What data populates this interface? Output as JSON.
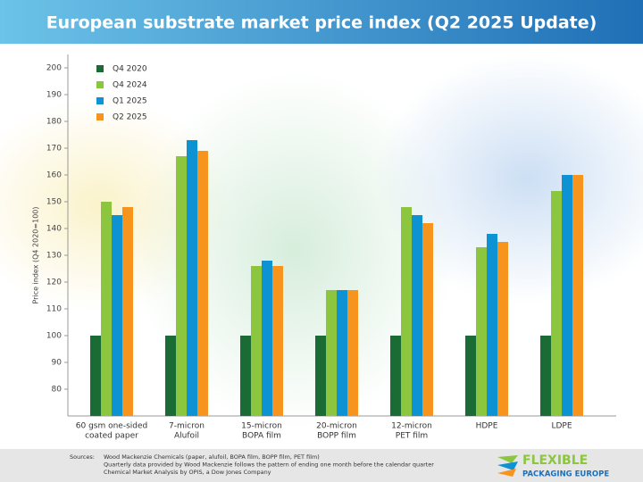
{
  "chart_data": {
    "type": "bar",
    "title": "European substrate market price index (Q2 2025 Update)",
    "y_label": "Price index (Q4 2020=100)",
    "categories": [
      [
        "60 gsm one-sided",
        "coated paper"
      ],
      [
        "7-micron",
        "Alufoil"
      ],
      [
        "15-micron",
        "BOPA film"
      ],
      [
        "20-micron",
        "BOPP film"
      ],
      [
        "12-micron",
        "PET film"
      ],
      [
        "HDPE"
      ],
      [
        "LDPE"
      ]
    ],
    "series": [
      {
        "name": "Q4 2020",
        "color": "#1b6b34",
        "values": [
          100,
          100,
          100,
          100,
          100,
          100,
          100
        ]
      },
      {
        "name": "Q4 2024",
        "color": "#8cc63e",
        "values": [
          150,
          167,
          126,
          117,
          148,
          133,
          154
        ]
      },
      {
        "name": "Q1 2025",
        "color": "#0d93d3",
        "values": [
          145,
          173,
          128,
          117,
          145,
          138,
          160
        ]
      },
      {
        "name": "Q2 2025",
        "color": "#f6941d",
        "values": [
          148,
          169,
          126,
          117,
          142,
          135,
          160
        ]
      }
    ],
    "ylim": [
      70,
      205
    ],
    "yticks": [
      80,
      90,
      100,
      110,
      120,
      130,
      140,
      150,
      160,
      170,
      180,
      190,
      200
    ],
    "legend": "upper left",
    "footer": {
      "label": "Sources:",
      "lines": [
        "Wood Mackenzie Chemicals (paper, alufoil, BOPA film, BOPP film, PET film)",
        "Quarterly data provided by Wood Mackenzie follows the pattern of ending one month before the calendar quarter",
        "Chemical Market Analysis by OPIS, a Dow Jones Company"
      ]
    },
    "logo": [
      "FLEXIBLE",
      "PACKAGING EUROPE"
    ]
  }
}
